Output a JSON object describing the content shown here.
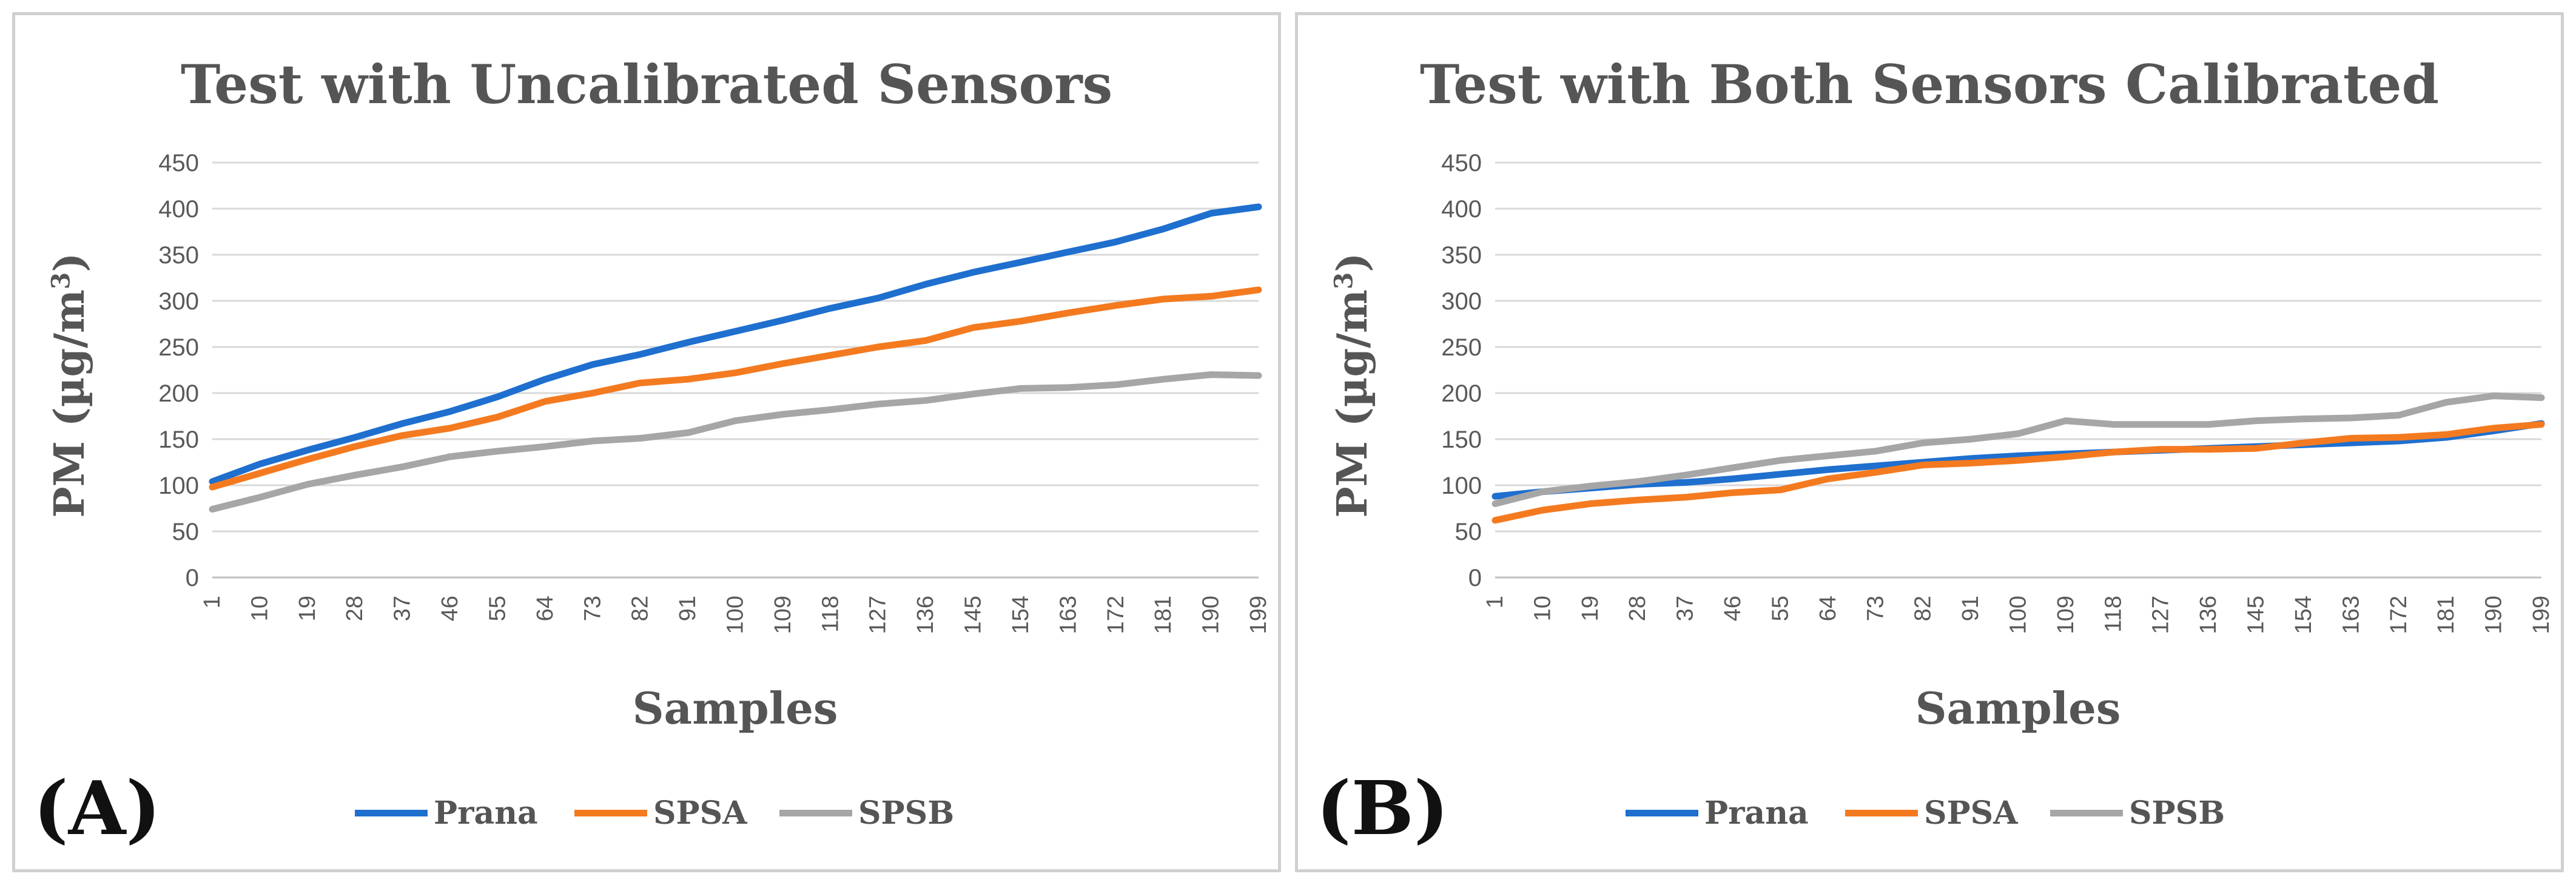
{
  "series_colors": {
    "Prana": "#1f6fcf",
    "SPSA": "#f47a20",
    "SPSB": "#a6a6a6"
  },
  "chart_data": [
    {
      "type": "line",
      "panel_label": "(A)",
      "title": "Test with Uncalibrated Sensors",
      "xlabel": "Samples",
      "ylabel": "PM (µg/m",
      "ylabel_sup": "3",
      "ylabel_close": ")",
      "ylim": [
        0,
        450
      ],
      "yticks": [
        "0",
        "50",
        "100",
        "150",
        "200",
        "250",
        "300",
        "350",
        "400",
        "450"
      ],
      "xticks": [
        "1",
        "10",
        "19",
        "28",
        "37",
        "46",
        "55",
        "64",
        "73",
        "82",
        "91",
        "100",
        "109",
        "118",
        "127",
        "136",
        "145",
        "154",
        "163",
        "172",
        "181",
        "190",
        "199"
      ],
      "x": [
        1,
        10,
        19,
        28,
        37,
        46,
        55,
        64,
        73,
        82,
        91,
        100,
        109,
        118,
        127,
        136,
        145,
        154,
        163,
        172,
        181,
        190,
        199
      ],
      "series": [
        {
          "name": "Prana",
          "values": [
            104,
            123,
            138,
            152,
            167,
            180,
            196,
            215,
            231,
            242,
            255,
            267,
            279,
            292,
            303,
            318,
            331,
            342,
            353,
            364,
            378,
            395,
            402
          ]
        },
        {
          "name": "SPSA",
          "values": [
            98,
            113,
            128,
            142,
            154,
            162,
            174,
            191,
            200,
            211,
            215,
            222,
            232,
            241,
            250,
            257,
            271,
            278,
            287,
            295,
            302,
            305,
            312
          ]
        },
        {
          "name": "SPSB",
          "values": [
            74,
            87,
            101,
            111,
            120,
            131,
            137,
            142,
            148,
            151,
            157,
            170,
            177,
            182,
            188,
            192,
            199,
            205,
            206,
            209,
            215,
            220,
            219
          ]
        }
      ]
    },
    {
      "type": "line",
      "panel_label": "(B)",
      "title": "Test with Both Sensors Calibrated",
      "xlabel": "Samples",
      "ylabel": "PM (µg/m",
      "ylabel_sup": "3",
      "ylabel_close": ")",
      "ylim": [
        0,
        450
      ],
      "yticks": [
        "0",
        "50",
        "100",
        "150",
        "200",
        "250",
        "300",
        "350",
        "400",
        "450"
      ],
      "xticks": [
        "1",
        "10",
        "19",
        "28",
        "37",
        "46",
        "55",
        "64",
        "73",
        "82",
        "91",
        "100",
        "109",
        "118",
        "127",
        "136",
        "145",
        "154",
        "163",
        "172",
        "181",
        "190",
        "199"
      ],
      "x": [
        1,
        10,
        19,
        28,
        37,
        46,
        55,
        64,
        73,
        82,
        91,
        100,
        109,
        118,
        127,
        136,
        145,
        154,
        163,
        172,
        181,
        190,
        199
      ],
      "series": [
        {
          "name": "Prana",
          "values": [
            88,
            93,
            97,
            101,
            103,
            107,
            112,
            117,
            121,
            125,
            129,
            132,
            134,
            136,
            138,
            140,
            142,
            144,
            146,
            148,
            152,
            159,
            167
          ]
        },
        {
          "name": "SPSA",
          "values": [
            62,
            73,
            80,
            84,
            87,
            92,
            95,
            107,
            114,
            122,
            124,
            127,
            131,
            136,
            139,
            139,
            140,
            146,
            151,
            152,
            155,
            162,
            166
          ]
        },
        {
          "name": "SPSB",
          "values": [
            80,
            93,
            99,
            104,
            111,
            119,
            127,
            132,
            137,
            146,
            150,
            156,
            170,
            166,
            166,
            166,
            170,
            172,
            173,
            176,
            190,
            197,
            195
          ]
        }
      ]
    }
  ]
}
